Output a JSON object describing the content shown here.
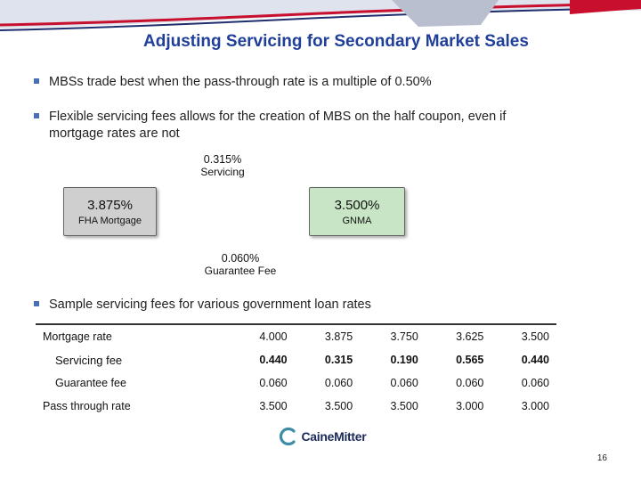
{
  "slide": {
    "title": "Adjusting Servicing for Secondary Market Sales",
    "bullets": [
      "MBSs trade best when the pass-through rate is a multiple of 0.50%",
      "Flexible servicing fees allows for the creation of MBS on the half coupon, even if",
      "mortgage rates are not",
      "Sample servicing fees for various government loan rates"
    ]
  },
  "diagram": {
    "servicing": {
      "value": "0.315%",
      "label": "Servicing"
    },
    "fha": {
      "value": "3.875%",
      "label": "FHA Mortgage",
      "color": "#cfcfcf"
    },
    "gnma": {
      "value": "3.500%",
      "label": "GNMA",
      "color": "#c8e6c5"
    },
    "guarantee": {
      "value": "0.060%",
      "label": "Guarantee Fee"
    }
  },
  "table": {
    "rows": [
      {
        "label": "Mortgage rate",
        "values": [
          "4.000",
          "3.875",
          "3.750",
          "3.625",
          "3.500"
        ]
      },
      {
        "label": "Servicing fee",
        "values": [
          "0.440",
          "0.315",
          "0.190",
          "0.565",
          "0.440"
        ]
      },
      {
        "label": "Guarantee fee",
        "values": [
          "0.060",
          "0.060",
          "0.060",
          "0.060",
          "0.060"
        ]
      },
      {
        "label": "Pass through rate",
        "values": [
          "3.500",
          "3.500",
          "3.500",
          "3.000",
          "3.000"
        ]
      }
    ]
  },
  "footer": {
    "logo_text": "CaineMitter",
    "page_number": "16"
  },
  "colors": {
    "title": "#1f3f99",
    "banner_red": "#c8102e",
    "banner_navy": "#1f2f6e",
    "bullet": "#4a6fb5"
  }
}
